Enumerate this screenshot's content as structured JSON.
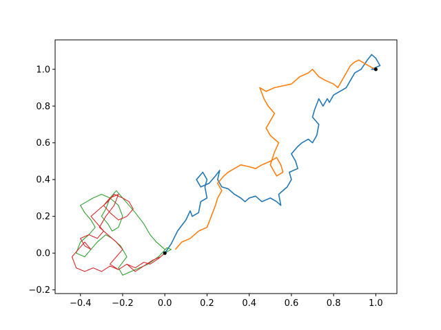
{
  "chart_data": {
    "type": "line",
    "title": "",
    "xlabel": "",
    "ylabel": "",
    "xlim": [
      -0.52,
      1.1
    ],
    "ylim": [
      -0.22,
      1.16
    ],
    "xticks": [
      -0.4,
      -0.2,
      0.0,
      0.2,
      0.4,
      0.6,
      0.8,
      1.0
    ],
    "yticks": [
      -0.2,
      0.0,
      0.2,
      0.4,
      0.6,
      0.8,
      1.0
    ],
    "xtick_labels": [
      "−0.4",
      "−0.2",
      "0.0",
      "0.2",
      "0.4",
      "0.6",
      "0.8",
      "1.0"
    ],
    "ytick_labels": [
      "−0.2",
      "0.0",
      "0.2",
      "0.4",
      "0.6",
      "0.8",
      "1.0"
    ],
    "grid": false,
    "legend": "none",
    "series": [
      {
        "color": "#1f77b4",
        "x": [
          0.0,
          0.03,
          0.06,
          0.1,
          0.12,
          0.13,
          0.16,
          0.17,
          0.2,
          0.19,
          0.2,
          0.18,
          0.15,
          0.17,
          0.21,
          0.24,
          0.26,
          0.25,
          0.27,
          0.3,
          0.33,
          0.36,
          0.38,
          0.4,
          0.43,
          0.46,
          0.5,
          0.53,
          0.55,
          0.54,
          0.58,
          0.6,
          0.59,
          0.63,
          0.62,
          0.6,
          0.63,
          0.65,
          0.68,
          0.7,
          0.72,
          0.73,
          0.7,
          0.71,
          0.73,
          0.75,
          0.77,
          0.78,
          0.8,
          0.83,
          0.86,
          0.88,
          0.9,
          0.93,
          0.96,
          0.98,
          1.0,
          1.02,
          0.98,
          1.0
        ],
        "y": [
          0.0,
          0.05,
          0.12,
          0.18,
          0.23,
          0.2,
          0.22,
          0.28,
          0.3,
          0.36,
          0.4,
          0.44,
          0.4,
          0.36,
          0.38,
          0.42,
          0.45,
          0.4,
          0.36,
          0.35,
          0.32,
          0.3,
          0.28,
          0.3,
          0.31,
          0.28,
          0.3,
          0.28,
          0.26,
          0.32,
          0.36,
          0.4,
          0.44,
          0.46,
          0.5,
          0.54,
          0.58,
          0.6,
          0.62,
          0.6,
          0.64,
          0.7,
          0.74,
          0.78,
          0.84,
          0.8,
          0.84,
          0.82,
          0.86,
          0.88,
          0.9,
          0.94,
          0.98,
          1.0,
          1.05,
          1.08,
          1.06,
          1.02,
          1.0,
          1.0
        ]
      },
      {
        "color": "#ff7f0e",
        "x": [
          0.05,
          0.08,
          0.12,
          0.16,
          0.2,
          0.22,
          0.24,
          0.25,
          0.27,
          0.25,
          0.28,
          0.3,
          0.33,
          0.36,
          0.4,
          0.43,
          0.46,
          0.5,
          0.53,
          0.55,
          0.56,
          0.53,
          0.5,
          0.52,
          0.54,
          0.5,
          0.48,
          0.5,
          0.52,
          0.49,
          0.47,
          0.45,
          0.48,
          0.52,
          0.56,
          0.6,
          0.64,
          0.68,
          0.7,
          0.73,
          0.76,
          0.8,
          0.82,
          0.84,
          0.86,
          0.88,
          0.9,
          0.92,
          0.95,
          0.98,
          1.0
        ],
        "y": [
          0.02,
          0.06,
          0.08,
          0.12,
          0.14,
          0.2,
          0.26,
          0.3,
          0.34,
          0.38,
          0.42,
          0.44,
          0.46,
          0.48,
          0.47,
          0.46,
          0.48,
          0.5,
          0.52,
          0.48,
          0.44,
          0.42,
          0.48,
          0.55,
          0.6,
          0.64,
          0.68,
          0.72,
          0.76,
          0.8,
          0.84,
          0.9,
          0.88,
          0.9,
          0.91,
          0.92,
          0.96,
          0.98,
          1.0,
          0.96,
          0.94,
          0.92,
          0.9,
          0.94,
          0.98,
          1.02,
          1.04,
          1.05,
          1.03,
          1.01,
          1.0
        ]
      },
      {
        "color": "#2ca02c",
        "x": [
          0.0,
          0.03,
          0.01,
          -0.03,
          -0.08,
          -0.12,
          -0.16,
          -0.2,
          -0.22,
          -0.18,
          -0.21,
          -0.25,
          -0.28,
          -0.32,
          -0.35,
          -0.38,
          -0.42,
          -0.4,
          -0.36,
          -0.33,
          -0.35,
          -0.38,
          -0.4,
          -0.37,
          -0.34,
          -0.3,
          -0.26,
          -0.22,
          -0.2,
          -0.22,
          -0.25,
          -0.27,
          -0.3,
          -0.28,
          -0.26,
          -0.23,
          -0.2,
          -0.17,
          -0.14,
          -0.1,
          -0.07,
          -0.04,
          0.0
        ],
        "y": [
          0.0,
          0.02,
          0.03,
          -0.02,
          -0.06,
          -0.08,
          -0.1,
          -0.12,
          -0.08,
          -0.02,
          0.04,
          0.08,
          0.1,
          0.06,
          0.02,
          -0.02,
          0.0,
          0.06,
          0.1,
          0.14,
          0.18,
          0.22,
          0.26,
          0.28,
          0.3,
          0.32,
          0.3,
          0.26,
          0.2,
          0.14,
          0.12,
          0.16,
          0.2,
          0.24,
          0.3,
          0.34,
          0.3,
          0.26,
          0.22,
          0.16,
          0.1,
          0.06,
          0.02
        ]
      },
      {
        "color": "#d62728",
        "x": [
          0.0,
          -0.03,
          -0.07,
          -0.1,
          -0.14,
          -0.18,
          -0.22,
          -0.26,
          -0.3,
          -0.34,
          -0.38,
          -0.42,
          -0.44,
          -0.41,
          -0.38,
          -0.35,
          -0.38,
          -0.4,
          -0.36,
          -0.32,
          -0.29,
          -0.32,
          -0.35,
          -0.31,
          -0.27,
          -0.24,
          -0.2,
          -0.17,
          -0.15,
          -0.18,
          -0.22,
          -0.26,
          -0.29,
          -0.26,
          -0.22,
          -0.24,
          -0.28,
          -0.31,
          -0.27,
          -0.23,
          -0.2,
          -0.23,
          -0.26,
          -0.22,
          -0.18,
          -0.14,
          -0.1,
          -0.06,
          -0.02,
          0.0
        ],
        "y": [
          0.0,
          -0.03,
          -0.06,
          -0.05,
          -0.08,
          -0.06,
          -0.09,
          -0.07,
          -0.1,
          -0.08,
          -0.1,
          -0.08,
          -0.02,
          0.02,
          0.06,
          0.02,
          0.04,
          0.08,
          0.1,
          0.08,
          0.12,
          0.16,
          0.2,
          0.24,
          0.28,
          0.32,
          0.3,
          0.28,
          0.24,
          0.2,
          0.18,
          0.22,
          0.26,
          0.3,
          0.32,
          0.26,
          0.2,
          0.14,
          0.1,
          0.06,
          0.02,
          -0.02,
          -0.06,
          -0.09,
          -0.06,
          -0.1,
          -0.07,
          -0.04,
          -0.02,
          0.0
        ]
      }
    ],
    "markers": [
      {
        "x": 0.0,
        "y": 0.0,
        "color": "#000000"
      },
      {
        "x": 1.0,
        "y": 1.0,
        "color": "#000000"
      }
    ]
  }
}
